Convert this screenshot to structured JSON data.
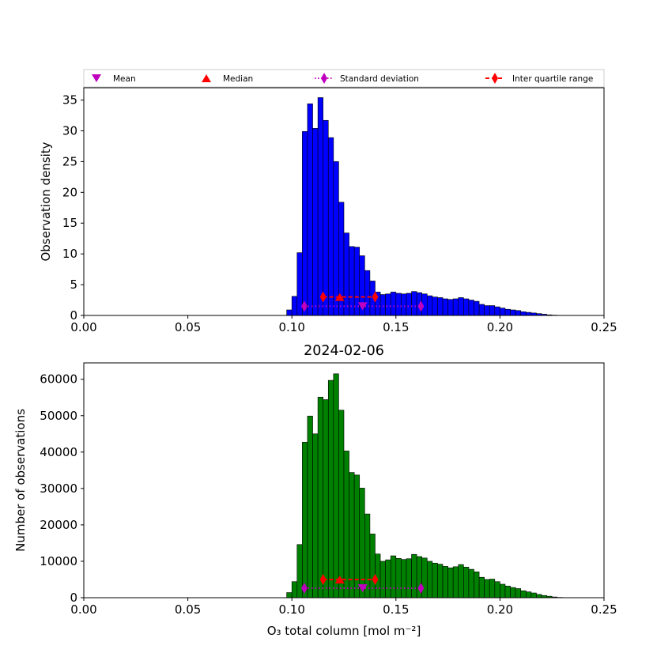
{
  "legend": {
    "placement": "top",
    "entries": [
      {
        "label": "Mean",
        "marker": "triangle-down",
        "color": "#bf00bf"
      },
      {
        "label": "Median",
        "marker": "triangle-up",
        "color": "#ff0000"
      },
      {
        "label": "Standard deviation",
        "marker": "thin-diamond",
        "color": "#bf00bf",
        "line": "dotted"
      },
      {
        "label": "Inter quartile range",
        "marker": "thin-diamond",
        "color": "#ff0000",
        "line": "dashed"
      }
    ]
  },
  "chart_data": [
    {
      "type": "bar",
      "subtype": "histogram",
      "title": "",
      "xlabel": "",
      "ylabel": "Observation density",
      "xlim": [
        0.0,
        0.25
      ],
      "ylim": [
        0,
        37
      ],
      "xticks": [
        "0.00",
        "0.05",
        "0.10",
        "0.15",
        "0.20",
        "0.25"
      ],
      "yticks": [
        "0",
        "5",
        "10",
        "15",
        "20",
        "25",
        "30",
        "35"
      ],
      "bar_color": "#0000ff",
      "bin_start": 0.0975,
      "bin_width": 0.0025,
      "values": [
        0.9,
        3.1,
        10.2,
        29.9,
        34.4,
        30.4,
        35.4,
        31.7,
        28.9,
        25.0,
        18.4,
        13.4,
        11.2,
        11.1,
        9.7,
        7.3,
        5.6,
        3.8,
        3.4,
        3.5,
        3.8,
        3.6,
        3.5,
        3.6,
        3.9,
        3.7,
        3.5,
        3.2,
        3.0,
        2.9,
        2.7,
        2.6,
        2.7,
        2.9,
        2.7,
        2.5,
        2.3,
        1.8,
        1.6,
        1.6,
        1.4,
        1.2,
        1.0,
        0.9,
        0.8,
        0.6,
        0.5,
        0.4,
        0.3,
        0.2,
        0.1,
        0.05,
        0.02
      ],
      "stats": {
        "mean": 0.134,
        "median": 0.123,
        "std_range": [
          0.106,
          0.162
        ],
        "iqr_range": [
          0.115,
          0.14
        ],
        "marker_y": {
          "mean": 1.5,
          "std": 1.5,
          "median": 3.0,
          "iqr": 3.0
        }
      }
    },
    {
      "type": "bar",
      "subtype": "histogram",
      "title": "2024-02-06",
      "xlabel": "O₃ total column [mol m⁻²]",
      "ylabel": "Number of observations",
      "xlim": [
        0.0,
        0.25
      ],
      "ylim": [
        0,
        64500
      ],
      "xticks": [
        "0.00",
        "0.05",
        "0.10",
        "0.15",
        "0.20",
        "0.25"
      ],
      "yticks": [
        "0",
        "10000",
        "20000",
        "30000",
        "40000",
        "50000",
        "60000"
      ],
      "bar_color": "#008000",
      "bin_start": 0.0975,
      "bin_width": 0.0025,
      "values": [
        1400,
        4400,
        14600,
        42700,
        49900,
        45000,
        55100,
        54400,
        59700,
        61500,
        51500,
        40300,
        34400,
        33700,
        30100,
        23000,
        17500,
        12000,
        10000,
        10400,
        11500,
        10800,
        10500,
        10700,
        11900,
        11300,
        10900,
        10000,
        9500,
        9200,
        8600,
        8200,
        8500,
        9100,
        8400,
        7800,
        7100,
        5600,
        5000,
        5100,
        4400,
        3700,
        3200,
        2800,
        2500,
        1900,
        1600,
        1300,
        900,
        600,
        400,
        200,
        80
      ],
      "stats": {
        "mean": 0.134,
        "median": 0.123,
        "std_range": [
          0.106,
          0.162
        ],
        "iqr_range": [
          0.115,
          0.14
        ],
        "marker_y": {
          "mean": 2600,
          "std": 2600,
          "median": 5000,
          "iqr": 5000
        }
      }
    }
  ]
}
